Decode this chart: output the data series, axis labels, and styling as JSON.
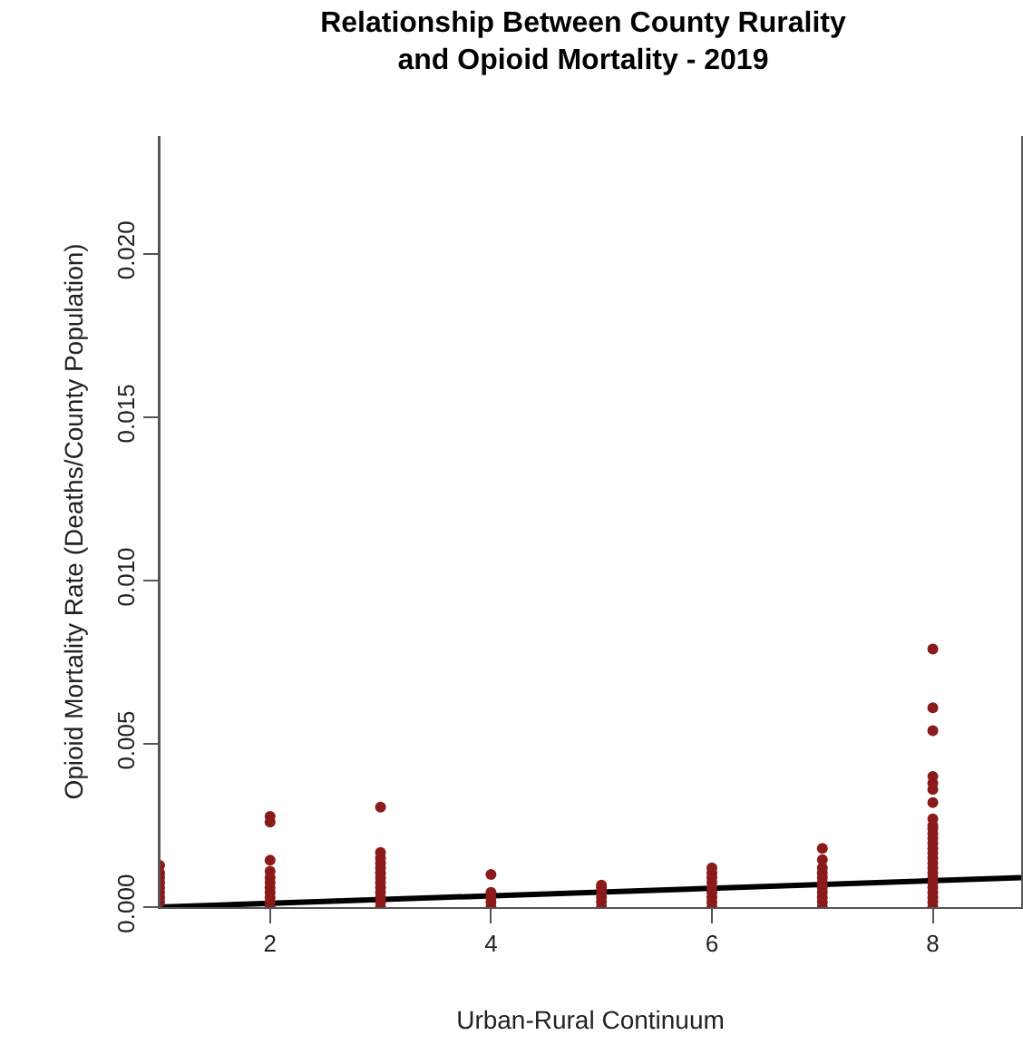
{
  "chart_data": {
    "type": "scatter",
    "title": "Relationship Between County Rurality\nand Opioid Mortality - 2019",
    "xlabel": "Urban-Rural Continuum",
    "ylabel": "Opioid Mortality Rate (Deaths/County Population)",
    "xlim": [
      1,
      8.8
    ],
    "xticks": [
      2,
      4,
      6,
      8
    ],
    "ylim": [
      0,
      0.0236
    ],
    "yticks": [
      {
        "value": 0,
        "label": "0.000"
      },
      {
        "value": 0.005,
        "label": "0.005"
      },
      {
        "value": 0.01,
        "label": "0.010"
      },
      {
        "value": 0.015,
        "label": "0.015"
      },
      {
        "value": 0.02,
        "label": "0.020"
      }
    ],
    "marker": "circle",
    "series": [
      {
        "color": "#8b1a1a",
        "x": [
          1,
          1,
          1,
          1,
          1,
          1,
          1,
          1,
          2,
          2,
          2,
          2,
          2,
          2,
          2,
          2,
          2,
          2,
          2,
          3,
          3,
          3,
          3,
          3,
          3,
          3,
          3,
          3,
          3,
          3,
          3,
          3,
          4,
          4,
          4,
          4,
          4,
          5,
          5,
          5,
          5,
          5,
          5,
          6,
          6,
          6,
          6,
          6,
          6,
          6,
          6,
          6,
          7,
          7,
          7,
          7,
          7,
          7,
          7,
          7,
          7,
          7,
          7,
          8,
          8,
          8,
          8,
          8,
          8,
          8,
          8,
          8,
          8,
          8,
          8,
          8,
          8,
          8,
          8,
          8,
          8,
          8,
          8,
          8,
          8,
          8,
          8,
          8,
          8
        ],
        "values": [
          0.00015,
          0.0003,
          0.00045,
          0.0006,
          0.00075,
          0.0009,
          0.00105,
          0.00128,
          0,
          0.00015,
          0.0003,
          0.00045,
          0.0006,
          0.00075,
          0.0009,
          0.0011,
          0.00144,
          0.0026,
          0.00278,
          0,
          0.00015,
          0.0003,
          0.00045,
          0.0006,
          0.00075,
          0.0009,
          0.00105,
          0.0012,
          0.00135,
          0.0015,
          0.00167,
          0.00306,
          0,
          0.00015,
          0.0003,
          0.00045,
          0.001,
          0,
          0.00015,
          0.0003,
          0.00045,
          0.0006,
          0.00067,
          0,
          0.00015,
          0.0003,
          0.00045,
          0.0006,
          0.00075,
          0.0009,
          0.00105,
          0.0012,
          0,
          0.00015,
          0.0003,
          0.00045,
          0.0006,
          0.00075,
          0.0009,
          0.00105,
          0.0012,
          0.00145,
          0.0018,
          0,
          0.00015,
          0.0003,
          0.00045,
          0.0006,
          0.00075,
          0.0009,
          0.00105,
          0.0012,
          0.00135,
          0.0015,
          0.00165,
          0.0018,
          0.00195,
          0.0021,
          0.00225,
          0.0024,
          0.0025,
          0.0027,
          0.0032,
          0.0036,
          0.0038,
          0.004,
          0.0054,
          0.0061,
          0.0079
        ]
      },
      {
        "type": "line",
        "color": "#000000",
        "x": [
          1,
          8.8
        ],
        "values": [
          0.0,
          0.0009
        ],
        "marker": "none",
        "line_style": "solid"
      }
    ]
  }
}
